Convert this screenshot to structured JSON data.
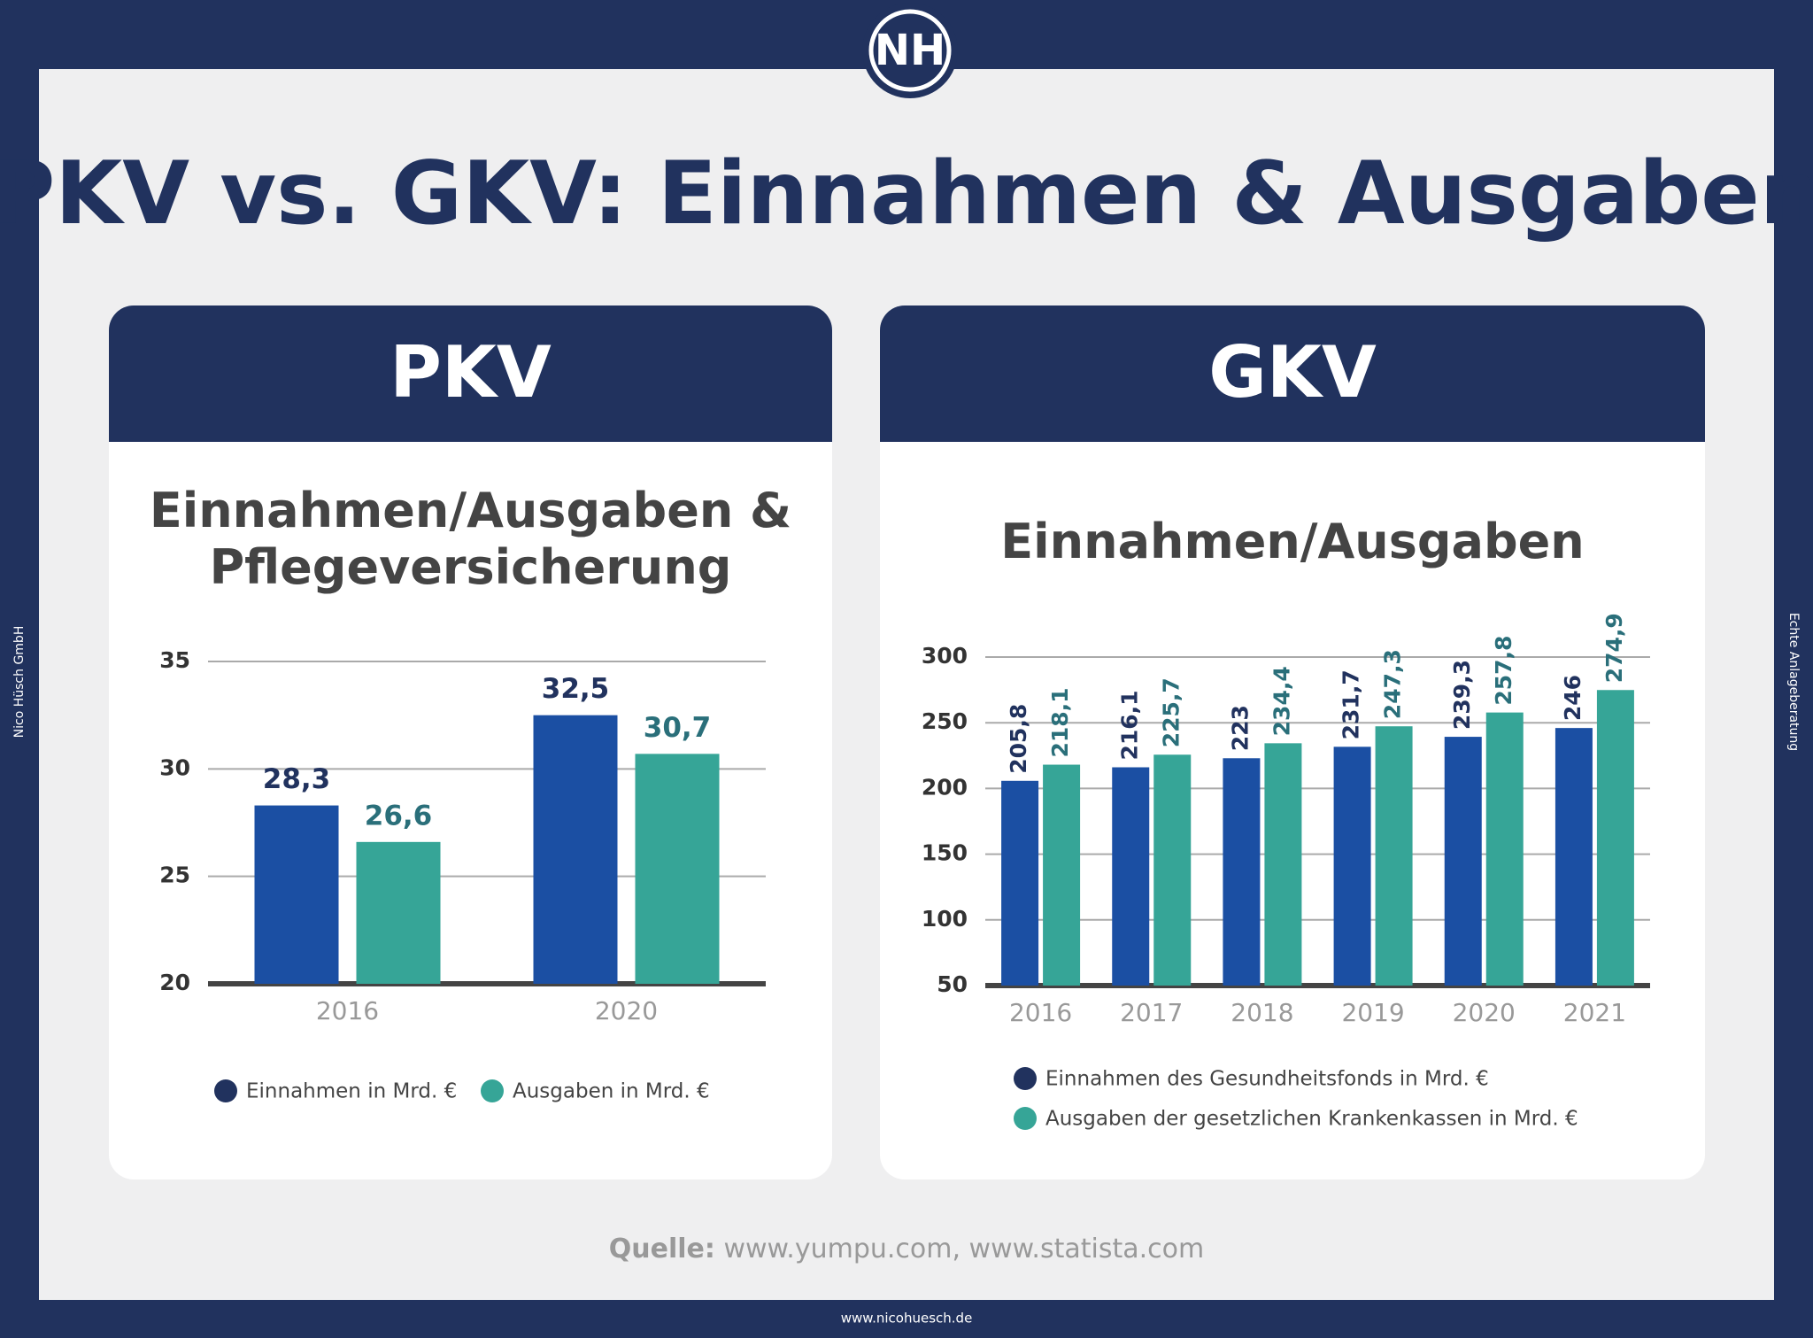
{
  "logo": "NH",
  "title": "PKV vs. GKV: Einnahmen & Ausgaben",
  "side_left": "Nico Hüsch GmbH",
  "side_right": "Echte Anlageberatung",
  "source_label": "Quelle:",
  "source": "www.yumpu.com, www.statista.com",
  "footer": "www.nicohuesch.de",
  "chart_data": [
    {
      "type": "bar",
      "heading": "PKV",
      "title": "Einnahmen/Ausgaben & Pflegeversicherung",
      "categories": [
        "2016",
        "2020"
      ],
      "series": [
        {
          "name": "Einnahmen in Mrd. €",
          "color": "#1b4fa3",
          "values": [
            28.3,
            32.5
          ],
          "value_labels": [
            "28,3",
            "32,5"
          ]
        },
        {
          "name": "Ausgaben in Mrd. €",
          "color": "#36a597",
          "values": [
            26.6,
            30.7
          ],
          "value_labels": [
            "26,6",
            "30,7"
          ]
        }
      ],
      "ylim": [
        20,
        35
      ],
      "yticks": [
        20,
        25,
        30,
        35
      ],
      "grid": true
    },
    {
      "type": "bar",
      "heading": "GKV",
      "title": "Einnahmen/Ausgaben",
      "categories": [
        "2016",
        "2017",
        "2018",
        "2019",
        "2020",
        "2021"
      ],
      "series": [
        {
          "name": "Einnahmen des Gesundheitsfonds in Mrd. €",
          "color": "#1b4fa3",
          "values": [
            205.8,
            216.1,
            223,
            231.7,
            239.3,
            246
          ],
          "value_labels": [
            "205,8",
            "216,1",
            "223",
            "231,7",
            "239,3",
            "246"
          ]
        },
        {
          "name": "Ausgaben der gesetzlichen Krankenkassen in Mrd. €",
          "color": "#36a597",
          "values": [
            218.1,
            225.7,
            234.4,
            247.3,
            257.8,
            274.9
          ],
          "value_labels": [
            "218,1",
            "225,7",
            "234,4",
            "247,3",
            "257,8",
            "274,9"
          ]
        }
      ],
      "ylim": [
        50,
        300
      ],
      "yticks": [
        50,
        100,
        150,
        200,
        250,
        300
      ],
      "grid": true
    }
  ]
}
